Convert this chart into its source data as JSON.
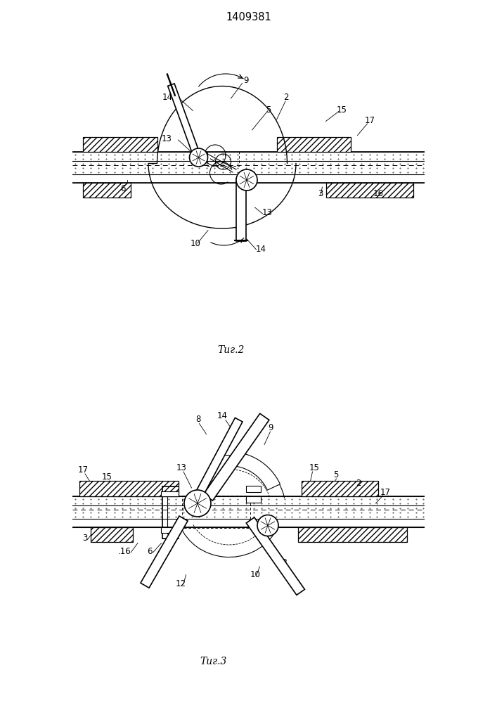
{
  "title": "1409381",
  "fig2_label": "Τиг.2",
  "fig3_label": "Τиг.3",
  "bg_color": "#ffffff",
  "line_color": "#1a1a1a",
  "lw_thin": 0.8,
  "lw_main": 1.2,
  "lw_thick": 2.5,
  "lw_vthick": 3.5,
  "fs_label": 8.5,
  "fs_title": 10.5,
  "fs_figcap": 10.0
}
